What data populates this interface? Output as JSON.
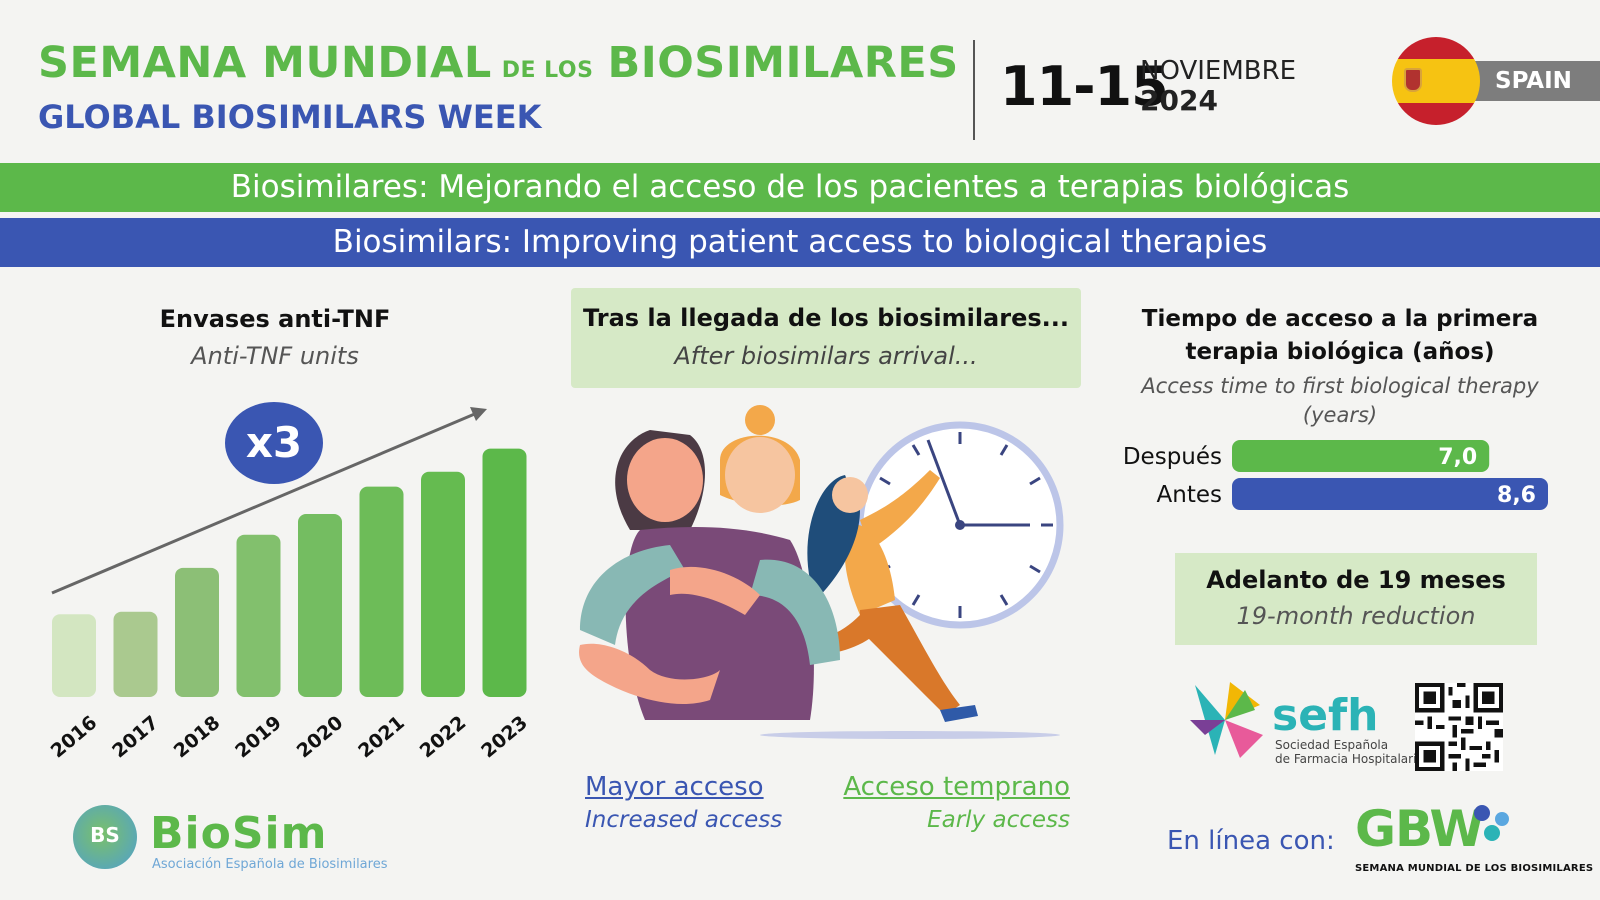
{
  "header": {
    "title_es_part1": "SEMANA MUNDIAL",
    "title_es_connector": "DE LOS",
    "title_es_part2": "BIOSIMILARES",
    "title_en": "GLOBAL BIOSIMILARS WEEK",
    "dates": "11-15",
    "month": "NOVIEMBRE",
    "year": "2024",
    "country": "SPAIN"
  },
  "banners": {
    "es": "Biosimilares: Mejorando el acceso de los pacientes a terapias biológicas",
    "en": "Biosimilars: Improving patient access to biological therapies"
  },
  "left_panel": {
    "heading": "Envases anti-TNF",
    "subheading": "Anti-TNF units",
    "multiplier": "x3"
  },
  "middle_panel": {
    "heading": "Tras la llegada de los biosimilares...",
    "subheading": "After biosimilars arrival...",
    "link_left": "Mayor acceso",
    "link_left_sub": "Increased access",
    "link_right": "Acceso temprano",
    "link_right_sub": "Early access"
  },
  "right_panel": {
    "heading": "Tiempo de acceso a la primera terapia biológica (años)",
    "subheading": "Access time to first biological therapy (years)",
    "callout_heading": "Adelanto de 19 meses",
    "callout_sub": "19-month reduction"
  },
  "logos": {
    "biosim_badge": "BS",
    "biosim_name": "BioSim",
    "biosim_sub": "Asociación Española de Biosimilares",
    "sefh_name": "sefh",
    "sefh_sub1": "Sociedad Española",
    "sefh_sub2": "de Farmacia Hospitalaria",
    "enlinea": "En línea con:",
    "gbw": "GBW",
    "gbw_sub": "SEMANA MUNDIAL DE LOS BIOSIMILARES"
  },
  "colors": {
    "green": "#5cb84a",
    "blue": "#3a56b2",
    "light_green": "#d6e9c6"
  },
  "chart_data": [
    {
      "type": "bar",
      "categories": [
        "2016",
        "2017",
        "2018",
        "2019",
        "2020",
        "2021",
        "2022",
        "2023"
      ],
      "values": [
        1.0,
        1.03,
        1.56,
        1.96,
        2.21,
        2.54,
        2.72,
        3.0
      ],
      "colors": [
        "#d3e6c1",
        "#aac98f",
        "#8cbf76",
        "#82c06d",
        "#74bd61",
        "#6dbc58",
        "#65bb50",
        "#5cb84a"
      ],
      "ylim": [
        0,
        3.2
      ]
    },
    {
      "type": "bar",
      "orientation": "horizontal",
      "categories": [
        "Después",
        "Antes"
      ],
      "values": [
        7.0,
        8.6
      ],
      "value_labels": [
        "7,0",
        "8,6"
      ],
      "colors": [
        "#5cb84a",
        "#3a56b2"
      ],
      "xlim": [
        0,
        8.6
      ]
    }
  ]
}
